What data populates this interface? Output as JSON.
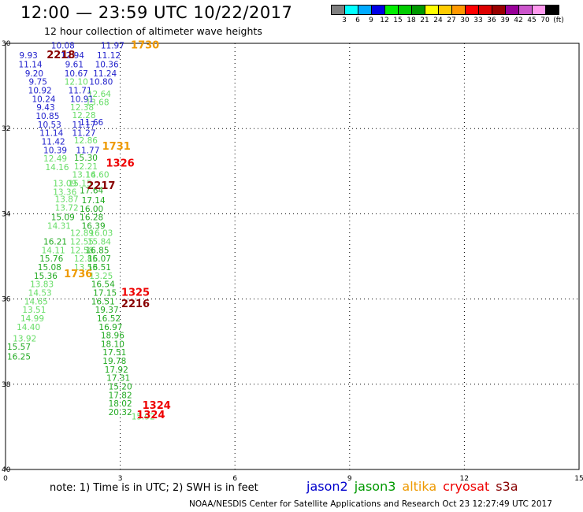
{
  "header": {
    "title": "12:00 — 23:59 UTC 10/22/2017",
    "subtitle": "12 hour collection of altimeter wave heights"
  },
  "colorbar": {
    "colors": [
      "#7f7f7f",
      "#00ffff",
      "#00aaff",
      "#0000e6",
      "#00ee00",
      "#00cc00",
      "#009900",
      "#ffff00",
      "#ffcc00",
      "#ff9900",
      "#ff0000",
      "#dd0000",
      "#990000",
      "#990099",
      "#cc55cc",
      "#ff99ee",
      "#000000"
    ],
    "labels": [
      "3",
      "6",
      "9",
      "12",
      "15",
      "18",
      "21",
      "24",
      "27",
      "30",
      "33",
      "36",
      "39",
      "42",
      "45",
      "70",
      "(ft)"
    ]
  },
  "axes": {
    "x_ticks": [
      "0",
      "3",
      "6",
      "9",
      "12",
      "15"
    ],
    "y_ticks": [
      "30",
      "32",
      "34",
      "36",
      "38",
      "40"
    ],
    "xlim": [
      0,
      15
    ],
    "ylim": [
      -40,
      -30
    ]
  },
  "wave_heights": [
    {
      "t": "10.08",
      "lon": 1.5,
      "lat": -30.05,
      "c": "#2222cc"
    },
    {
      "t": "11.97",
      "lon": 2.8,
      "lat": -30.05,
      "c": "#2222cc"
    },
    {
      "t": "9.93",
      "lon": 0.6,
      "lat": -30.28,
      "c": "#2222cc"
    },
    {
      "t": "12.94",
      "lon": 1.75,
      "lat": -30.28,
      "c": "#2222cc"
    },
    {
      "t": "11.12",
      "lon": 2.7,
      "lat": -30.28,
      "c": "#2222cc"
    },
    {
      "t": "11.14",
      "lon": 0.65,
      "lat": -30.49,
      "c": "#2222cc"
    },
    {
      "t": "9.61",
      "lon": 1.8,
      "lat": -30.49,
      "c": "#2222cc"
    },
    {
      "t": "10.36",
      "lon": 2.65,
      "lat": -30.49,
      "c": "#2222cc"
    },
    {
      "t": "9.20",
      "lon": 0.75,
      "lat": -30.7,
      "c": "#2222cc"
    },
    {
      "t": "10.67",
      "lon": 1.85,
      "lat": -30.7,
      "c": "#2222cc"
    },
    {
      "t": "11.24",
      "lon": 2.6,
      "lat": -30.7,
      "c": "#2222cc"
    },
    {
      "t": "9.75",
      "lon": 0.85,
      "lat": -30.9,
      "c": "#2222cc"
    },
    {
      "t": "12.10",
      "lon": 1.85,
      "lat": -30.9,
      "c": "#66dd66"
    },
    {
      "t": "10.80",
      "lon": 2.5,
      "lat": -30.9,
      "c": "#2222cc"
    },
    {
      "t": "10.92",
      "lon": 0.9,
      "lat": -31.1,
      "c": "#2222cc"
    },
    {
      "t": "11.71",
      "lon": 1.95,
      "lat": -31.1,
      "c": "#2222cc"
    },
    {
      "t": "12.64",
      "lon": 2.45,
      "lat": -31.18,
      "c": "#66dd66"
    },
    {
      "t": "10.24",
      "lon": 1.0,
      "lat": -31.3,
      "c": "#2222cc"
    },
    {
      "t": "10.91",
      "lon": 2.0,
      "lat": -31.3,
      "c": "#2222cc"
    },
    {
      "t": "13.68",
      "lon": 2.4,
      "lat": -31.38,
      "c": "#66dd66"
    },
    {
      "t": "9.43",
      "lon": 1.05,
      "lat": -31.5,
      "c": "#2222cc"
    },
    {
      "t": "12.38",
      "lon": 2.0,
      "lat": -31.5,
      "c": "#66dd66"
    },
    {
      "t": "10.85",
      "lon": 1.1,
      "lat": -31.7,
      "c": "#2222cc"
    },
    {
      "t": "12.28",
      "lon": 2.05,
      "lat": -31.68,
      "c": "#66dd66"
    },
    {
      "t": "10.53",
      "lon": 1.15,
      "lat": -31.9,
      "c": "#2222cc"
    },
    {
      "t": "11.17",
      "lon": 2.05,
      "lat": -31.9,
      "c": "#2222cc"
    },
    {
      "t": "11.66",
      "lon": 2.25,
      "lat": -31.85,
      "c": "#2222cc"
    },
    {
      "t": "11.14",
      "lon": 1.2,
      "lat": -32.1,
      "c": "#2222cc"
    },
    {
      "t": "11.27",
      "lon": 2.05,
      "lat": -32.1,
      "c": "#2222cc"
    },
    {
      "t": "11.42",
      "lon": 1.25,
      "lat": -32.3,
      "c": "#2222cc"
    },
    {
      "t": "12.86",
      "lon": 2.1,
      "lat": -32.27,
      "c": "#66dd66"
    },
    {
      "t": "10.39",
      "lon": 1.3,
      "lat": -32.5,
      "c": "#2222cc"
    },
    {
      "t": "11.77",
      "lon": 2.15,
      "lat": -32.5,
      "c": "#2222cc"
    },
    {
      "t": "12.49",
      "lon": 1.3,
      "lat": -32.7,
      "c": "#66dd66"
    },
    {
      "t": "15.30",
      "lon": 2.1,
      "lat": -32.68,
      "c": "#22aa22"
    },
    {
      "t": "14.16",
      "lon": 1.35,
      "lat": -32.9,
      "c": "#66dd66"
    },
    {
      "t": "12.21",
      "lon": 2.1,
      "lat": -32.88,
      "c": "#66dd66"
    },
    {
      "t": "13.16",
      "lon": 2.05,
      "lat": -33.08,
      "c": "#66dd66"
    },
    {
      "t": "14.60",
      "lon": 2.4,
      "lat": -33.08,
      "c": "#66dd66"
    },
    {
      "t": "13.09",
      "lon": 1.55,
      "lat": -33.28,
      "c": "#66dd66"
    },
    {
      "t": "15.15",
      "lon": 1.95,
      "lat": -33.28,
      "c": "#66dd66"
    },
    {
      "t": "13.36",
      "lon": 1.55,
      "lat": -33.48,
      "c": "#66dd66"
    },
    {
      "t": "17.64",
      "lon": 2.25,
      "lat": -33.45,
      "c": "#22aa22"
    },
    {
      "t": "13.87",
      "lon": 1.6,
      "lat": -33.65,
      "c": "#66dd66"
    },
    {
      "t": "17.14",
      "lon": 2.3,
      "lat": -33.68,
      "c": "#22aa22"
    },
    {
      "t": "13.72",
      "lon": 1.6,
      "lat": -33.85,
      "c": "#66dd66"
    },
    {
      "t": "16.00",
      "lon": 2.25,
      "lat": -33.88,
      "c": "#22aa22"
    },
    {
      "t": "15.09",
      "lon": 1.5,
      "lat": -34.08,
      "c": "#22aa22"
    },
    {
      "t": "16.28",
      "lon": 2.25,
      "lat": -34.08,
      "c": "#22aa22"
    },
    {
      "t": "14.31",
      "lon": 1.4,
      "lat": -34.28,
      "c": "#66dd66"
    },
    {
      "t": "16.39",
      "lon": 2.3,
      "lat": -34.28,
      "c": "#22aa22"
    },
    {
      "t": "12.89",
      "lon": 2.0,
      "lat": -34.45,
      "c": "#66dd66"
    },
    {
      "t": "16.03",
      "lon": 2.5,
      "lat": -34.45,
      "c": "#66dd66"
    },
    {
      "t": "16.21",
      "lon": 1.3,
      "lat": -34.65,
      "c": "#22aa22"
    },
    {
      "t": "12.55",
      "lon": 2.0,
      "lat": -34.65,
      "c": "#66dd66"
    },
    {
      "t": "15.84",
      "lon": 2.45,
      "lat": -34.65,
      "c": "#66dd66"
    },
    {
      "t": "14.11",
      "lon": 1.25,
      "lat": -34.85,
      "c": "#66dd66"
    },
    {
      "t": "12.58",
      "lon": 2.0,
      "lat": -34.85,
      "c": "#66dd66"
    },
    {
      "t": "16.85",
      "lon": 2.4,
      "lat": -34.85,
      "c": "#22aa22"
    },
    {
      "t": "15.76",
      "lon": 1.2,
      "lat": -35.05,
      "c": "#22aa22"
    },
    {
      "t": "12.85",
      "lon": 2.1,
      "lat": -35.05,
      "c": "#66dd66"
    },
    {
      "t": "16.07",
      "lon": 2.45,
      "lat": -35.05,
      "c": "#22aa22"
    },
    {
      "t": "15.08",
      "lon": 1.15,
      "lat": -35.25,
      "c": "#22aa22"
    },
    {
      "t": "13.53",
      "lon": 2.1,
      "lat": -35.25,
      "c": "#66dd66"
    },
    {
      "t": "16.51",
      "lon": 2.45,
      "lat": -35.25,
      "c": "#22aa22"
    },
    {
      "t": "15.36",
      "lon": 1.05,
      "lat": -35.45,
      "c": "#22aa22"
    },
    {
      "t": "13.25",
      "lon": 2.5,
      "lat": -35.45,
      "c": "#66dd66"
    },
    {
      "t": "13.83",
      "lon": 0.95,
      "lat": -35.65,
      "c": "#66dd66"
    },
    {
      "t": "16.54",
      "lon": 2.55,
      "lat": -35.65,
      "c": "#22aa22"
    },
    {
      "t": "14.53",
      "lon": 0.9,
      "lat": -35.85,
      "c": "#66dd66"
    },
    {
      "t": "17.15",
      "lon": 2.6,
      "lat": -35.85,
      "c": "#22aa22"
    },
    {
      "t": "14.65",
      "lon": 0.8,
      "lat": -36.05,
      "c": "#66dd66"
    },
    {
      "t": "16.51",
      "lon": 2.55,
      "lat": -36.05,
      "c": "#22aa22"
    },
    {
      "t": "13.51",
      "lon": 0.75,
      "lat": -36.25,
      "c": "#66dd66"
    },
    {
      "t": "19.37",
      "lon": 2.65,
      "lat": -36.25,
      "c": "#22aa22"
    },
    {
      "t": "14.99",
      "lon": 0.7,
      "lat": -36.45,
      "c": "#66dd66"
    },
    {
      "t": "16.52",
      "lon": 2.7,
      "lat": -36.45,
      "c": "#22aa22"
    },
    {
      "t": "14.40",
      "lon": 0.6,
      "lat": -36.65,
      "c": "#66dd66"
    },
    {
      "t": "16.97",
      "lon": 2.75,
      "lat": -36.65,
      "c": "#22aa22"
    },
    {
      "t": "18.96",
      "lon": 2.8,
      "lat": -36.85,
      "c": "#22aa22"
    },
    {
      "t": "13.92",
      "lon": 0.5,
      "lat": -36.92,
      "c": "#66dd66"
    },
    {
      "t": "18.10",
      "lon": 2.8,
      "lat": -37.05,
      "c": "#22aa22"
    },
    {
      "t": "15.57",
      "lon": 0.35,
      "lat": -37.12,
      "c": "#22aa22"
    },
    {
      "t": "17.51",
      "lon": 2.85,
      "lat": -37.25,
      "c": "#22aa22"
    },
    {
      "t": "16.25",
      "lon": 0.35,
      "lat": -37.35,
      "c": "#22aa22"
    },
    {
      "t": "19.78",
      "lon": 2.85,
      "lat": -37.45,
      "c": "#22aa22"
    },
    {
      "t": "17.92",
      "lon": 2.9,
      "lat": -37.65,
      "c": "#22aa22"
    },
    {
      "t": "17.31",
      "lon": 2.95,
      "lat": -37.85,
      "c": "#22aa22"
    },
    {
      "t": "15.20",
      "lon": 3.0,
      "lat": -38.05,
      "c": "#22aa22"
    },
    {
      "t": "17.82",
      "lon": 3.0,
      "lat": -38.25,
      "c": "#22aa22"
    },
    {
      "t": "18.02",
      "lon": 3.0,
      "lat": -38.45,
      "c": "#22aa22"
    },
    {
      "t": "20.32",
      "lon": 3.0,
      "lat": -38.65,
      "c": "#22aa22"
    },
    {
      "t": "15.92",
      "lon": 3.6,
      "lat": -38.75,
      "c": "#66dd66"
    }
  ],
  "pass_times": [
    {
      "t": "1730",
      "lon": 3.65,
      "lat": -30.05,
      "c": "#ee9900"
    },
    {
      "t": "2218",
      "lon": 1.45,
      "lat": -30.28,
      "c": "#880000"
    },
    {
      "t": "1731",
      "lon": 2.9,
      "lat": -32.42,
      "c": "#ee9900"
    },
    {
      "t": "1326",
      "lon": 3.0,
      "lat": -32.82,
      "c": "#ee0000"
    },
    {
      "t": "2217",
      "lon": 2.5,
      "lat": -33.35,
      "c": "#880000"
    },
    {
      "t": "1736",
      "lon": 1.9,
      "lat": -35.42,
      "c": "#ee9900"
    },
    {
      "t": "1325",
      "lon": 3.4,
      "lat": -35.85,
      "c": "#ee0000"
    },
    {
      "t": "2216",
      "lon": 3.4,
      "lat": -36.12,
      "c": "#880000"
    },
    {
      "t": "1324",
      "lon": 3.95,
      "lat": -38.5,
      "c": "#ee0000"
    },
    {
      "t": "1324",
      "lon": 3.8,
      "lat": -38.72,
      "c": "#ee0000"
    }
  ],
  "note": "note: 1) Time is in UTC; 2) SWH is in feet",
  "missions": [
    {
      "name": "jason2",
      "color": "#0000cc"
    },
    {
      "name": "jason3",
      "color": "#009900"
    },
    {
      "name": "altika",
      "color": "#ee9900"
    },
    {
      "name": "cryosat",
      "color": "#ee0000"
    },
    {
      "name": "s3a",
      "color": "#880000"
    }
  ],
  "footer": "NOAA/NESDIS Center for Satellite Applications and Research     Oct 23 12:27:49 UTC 2017"
}
